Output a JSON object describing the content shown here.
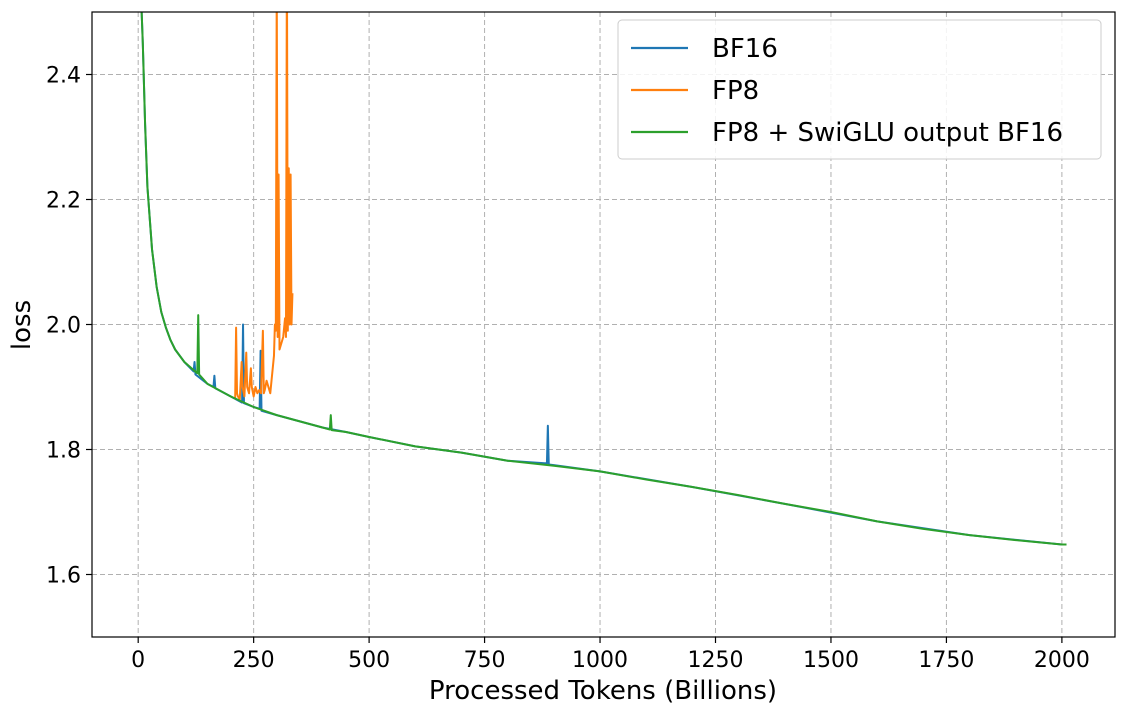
{
  "chart_data": {
    "type": "line",
    "title": "",
    "xlabel": "Processed Tokens (Billions)",
    "ylabel": "loss",
    "xlim": [
      -100,
      2115
    ],
    "ylim": [
      1.5,
      2.5
    ],
    "xticks": [
      0,
      250,
      500,
      750,
      1000,
      1250,
      1500,
      1750,
      2000
    ],
    "yticks": [
      1.6,
      1.8,
      2.0,
      2.2,
      2.4
    ],
    "xtick_labels": [
      "0",
      "250",
      "500",
      "750",
      "1000",
      "1250",
      "1500",
      "1750",
      "2000"
    ],
    "ytick_labels": [
      "1.6",
      "1.8",
      "2.0",
      "2.2",
      "2.4"
    ],
    "grid": true,
    "legend_position": "top-right",
    "series": [
      {
        "name": "BF16",
        "color": "#1f77b4",
        "x": [
          1,
          5,
          10,
          15,
          20,
          30,
          40,
          50,
          60,
          70,
          80,
          100,
          120,
          122,
          124,
          150,
          163,
          165,
          167,
          200,
          225,
          227,
          229,
          250,
          263,
          265,
          267,
          300,
          350,
          400,
          450,
          500,
          600,
          700,
          800,
          880,
          885,
          887,
          889,
          900,
          1000,
          1200,
          1400,
          1600,
          1800,
          2000,
          2010
        ],
        "y": [
          2.62,
          2.55,
          2.45,
          2.32,
          2.22,
          2.12,
          2.06,
          2.02,
          1.995,
          1.975,
          1.96,
          1.94,
          1.925,
          1.94,
          1.92,
          1.905,
          1.9,
          1.918,
          1.898,
          1.885,
          1.875,
          2.0,
          1.874,
          1.868,
          1.865,
          1.958,
          1.862,
          1.855,
          1.845,
          1.835,
          1.828,
          1.82,
          1.805,
          1.795,
          1.782,
          1.778,
          1.778,
          1.838,
          1.776,
          1.775,
          1.765,
          1.74,
          1.713,
          1.685,
          1.663,
          1.648,
          1.648
        ]
      },
      {
        "name": "FP8",
        "color": "#ff7f0e",
        "x": [
          210,
          212,
          214,
          216,
          220,
          224,
          226,
          230,
          234,
          236,
          240,
          244,
          246,
          250,
          254,
          258,
          262,
          266,
          270,
          272,
          274,
          278,
          282,
          286,
          290,
          294,
          296,
          298,
          300,
          302,
          304,
          306,
          310,
          314,
          318,
          320,
          322,
          324,
          326,
          328,
          330,
          332,
          334
        ],
        "y": [
          1.88,
          1.995,
          1.89,
          1.885,
          1.88,
          1.94,
          1.9,
          1.885,
          1.955,
          1.9,
          1.89,
          1.93,
          1.9,
          1.885,
          1.9,
          1.89,
          1.895,
          1.89,
          1.99,
          1.89,
          1.895,
          1.91,
          1.9,
          1.89,
          1.92,
          1.95,
          2.0,
          1.99,
          2.55,
          1.98,
          2.24,
          1.96,
          1.97,
          1.98,
          2.01,
          1.98,
          2.6,
          1.99,
          2.25,
          2.0,
          2.24,
          2.0,
          2.05
        ]
      },
      {
        "name": "FP8 + SwiGLU output BF16",
        "color": "#2ca02c",
        "x": [
          1,
          5,
          10,
          15,
          20,
          30,
          40,
          50,
          60,
          70,
          80,
          100,
          128,
          130,
          132,
          150,
          200,
          250,
          300,
          350,
          400,
          415,
          417,
          419,
          450,
          500,
          600,
          700,
          800,
          900,
          1000,
          1100,
          1200,
          1300,
          1400,
          1500,
          1600,
          1700,
          1800,
          1900,
          2000,
          2010
        ],
        "y": [
          2.62,
          2.55,
          2.45,
          2.32,
          2.22,
          2.12,
          2.06,
          2.02,
          1.995,
          1.975,
          1.96,
          1.94,
          1.922,
          2.015,
          1.92,
          1.905,
          1.885,
          1.868,
          1.855,
          1.845,
          1.835,
          1.832,
          1.855,
          1.831,
          1.828,
          1.82,
          1.805,
          1.795,
          1.782,
          1.774,
          1.765,
          1.752,
          1.74,
          1.727,
          1.713,
          1.7,
          1.685,
          1.673,
          1.663,
          1.655,
          1.648,
          1.648
        ]
      }
    ]
  }
}
